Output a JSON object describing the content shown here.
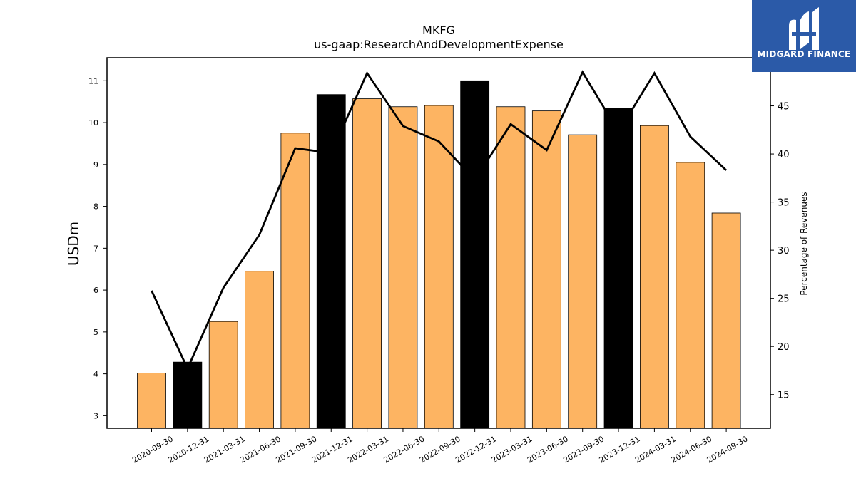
{
  "chart_data": {
    "type": "bar",
    "title": "MKFG",
    "subtitle": "us-gaap:ResearchAndDevelopmentExpense",
    "ylabel": "USDm",
    "y2label": "Percentage of Revenues",
    "ylim": [
      2.7,
      11.55
    ],
    "y2lim": [
      11.5,
      50.0
    ],
    "yticks": [
      3,
      4,
      5,
      6,
      7,
      8,
      9,
      10,
      11
    ],
    "y2ticks": [
      15,
      20,
      25,
      30,
      35,
      40,
      45
    ],
    "grid": false,
    "categories": [
      "2020-09-30",
      "2020-12-31",
      "2021-03-31",
      "2021-06-30",
      "2021-09-30",
      "2021-12-31",
      "2022-03-31",
      "2022-06-30",
      "2022-09-30",
      "2022-12-31",
      "2023-03-31",
      "2023-06-30",
      "2023-09-30",
      "2023-12-31",
      "2024-03-31",
      "2024-06-30",
      "2024-09-30"
    ],
    "series": [
      {
        "type": "bar",
        "axis": "left",
        "values": [
          4.02,
          4.28,
          5.25,
          6.45,
          9.75,
          10.67,
          10.57,
          10.38,
          10.41,
          11.0,
          10.38,
          10.28,
          9.71,
          10.35,
          9.93,
          9.05,
          7.84
        ]
      },
      {
        "type": "line",
        "axis": "right",
        "values": [
          25.8,
          17.7,
          26.1,
          31.6,
          40.6,
          40.1,
          48.4,
          42.9,
          41.3,
          37.3,
          43.1,
          40.4,
          48.5,
          42.3,
          48.4,
          41.8,
          38.3
        ]
      }
    ],
    "bar_colors": {
      "quarter": "#fdb462",
      "year_end": "#000000"
    },
    "year_end_flags": [
      false,
      true,
      false,
      false,
      false,
      true,
      false,
      false,
      false,
      true,
      false,
      false,
      false,
      true,
      false,
      false,
      false
    ],
    "line_color": "#000000"
  },
  "logo": {
    "text": "MIDGARD FINANCE",
    "bg_color": "#2b5aa8",
    "icon": "midgard-m-icon"
  }
}
